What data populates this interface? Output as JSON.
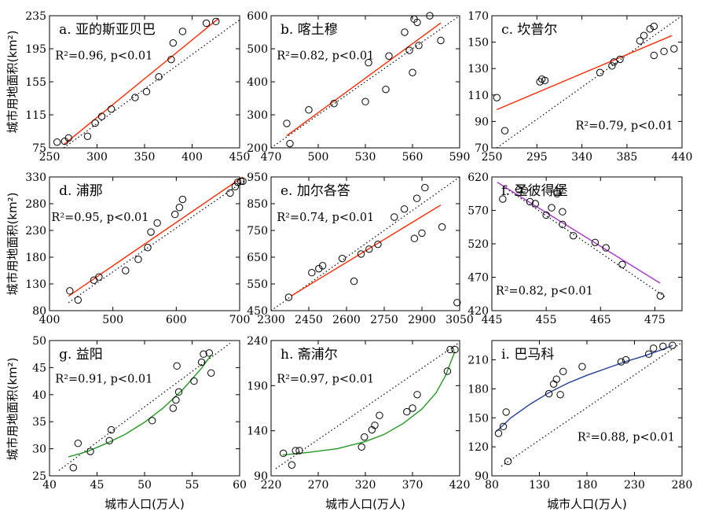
{
  "figure": {
    "ylabel": "城市用地面积(km²)",
    "xlabel": "城市人口(万人)"
  },
  "chart_data": [
    {
      "type": "scatter",
      "title": "a. 亚的斯亚贝巴",
      "stat": "R²=0.96, p<0.01",
      "xlim": [
        250,
        450
      ],
      "ylim": [
        75,
        235
      ],
      "xticks": [
        "250",
        "300",
        "350",
        "400",
        "450"
      ],
      "xtick_values": [
        250,
        300,
        350,
        400,
        450
      ],
      "yticks": [
        "75",
        "115",
        "155",
        "195",
        "235"
      ],
      "ytick_values": [
        75,
        115,
        155,
        195,
        235
      ],
      "fit_color": "#ff2a00",
      "fit_type": "linear",
      "fit_x": [
        265,
        428
      ],
      "fit_y": [
        79,
        232
      ],
      "diag_x": [
        265,
        450
      ],
      "diag_y": [
        75,
        230
      ],
      "points": [
        [
          258,
          82
        ],
        [
          266,
          83
        ],
        [
          270,
          87
        ],
        [
          290,
          89
        ],
        [
          298,
          105
        ],
        [
          305,
          113
        ],
        [
          315,
          122
        ],
        [
          340,
          136
        ],
        [
          352,
          143
        ],
        [
          365,
          161
        ],
        [
          378,
          182
        ],
        [
          380,
          202
        ],
        [
          390,
          216
        ],
        [
          415,
          226
        ],
        [
          425,
          228
        ]
      ]
    },
    {
      "type": "scatter",
      "title": "b. 喀土穆",
      "stat": "R²=0.82, p<0.01",
      "xlim": [
        470,
        590
      ],
      "ylim": [
        200,
        600
      ],
      "xticks": [
        "470",
        "500",
        "530",
        "560",
        "590"
      ],
      "xtick_values": [
        470,
        500,
        530,
        560,
        590
      ],
      "yticks": [
        "200",
        "300",
        "400",
        "500",
        "600"
      ],
      "ytick_values": [
        200,
        300,
        400,
        500,
        600
      ],
      "fit_color": "#ff2a00",
      "fit_type": "linear",
      "fit_x": [
        480,
        578
      ],
      "fit_y": [
        237,
        578
      ],
      "diag_x": [
        470,
        590
      ],
      "diag_y": [
        200,
        600
      ],
      "points": [
        [
          480,
          274
        ],
        [
          482,
          213
        ],
        [
          494,
          315
        ],
        [
          510,
          334
        ],
        [
          530,
          340
        ],
        [
          532,
          458
        ],
        [
          543,
          377
        ],
        [
          545,
          478
        ],
        [
          555,
          550
        ],
        [
          558,
          495
        ],
        [
          560,
          428
        ],
        [
          561,
          590
        ],
        [
          563,
          580
        ],
        [
          564,
          510
        ],
        [
          571,
          600
        ],
        [
          578,
          525
        ]
      ]
    },
    {
      "type": "scatter",
      "title": "c. 坎普尔",
      "stat": "R²=0.79, p<0.01",
      "xlim": [
        250,
        440
      ],
      "ylim": [
        70,
        170
      ],
      "xticks": [
        "250",
        "295",
        "340",
        "385",
        "440"
      ],
      "xtick_values": [
        250,
        295,
        340,
        385,
        440
      ],
      "yticks": [
        "70",
        "90",
        "110",
        "130",
        "150",
        "170"
      ],
      "ytick_values": [
        70,
        90,
        110,
        130,
        150,
        170
      ],
      "fit_color": "#ff2a00",
      "fit_type": "linear",
      "fit_x": [
        255,
        430
      ],
      "fit_y": [
        99,
        155
      ],
      "diag_x": [
        255,
        440
      ],
      "diag_y": [
        70,
        170
      ],
      "points": [
        [
          255,
          108
        ],
        [
          263,
          83
        ],
        [
          298,
          120
        ],
        [
          300,
          122
        ],
        [
          303,
          121
        ],
        [
          358,
          127
        ],
        [
          370,
          132
        ],
        [
          372,
          135
        ],
        [
          378,
          137
        ],
        [
          398,
          151
        ],
        [
          402,
          155
        ],
        [
          408,
          160
        ],
        [
          412,
          162
        ],
        [
          412,
          140
        ],
        [
          422,
          143
        ],
        [
          432,
          145
        ]
      ]
    },
    {
      "type": "scatter",
      "title": "d. 浦那",
      "stat": "R²=0.95, p<0.01",
      "xlim": [
        400,
        700
      ],
      "ylim": [
        80,
        330
      ],
      "xticks": [
        "400",
        "500",
        "600",
        "700"
      ],
      "xtick_values": [
        400,
        500,
        600,
        700
      ],
      "yticks": [
        "80",
        "130",
        "180",
        "230",
        "280",
        "330"
      ],
      "ytick_values": [
        80,
        130,
        180,
        230,
        280,
        330
      ],
      "fit_color": "#ff2a00",
      "fit_type": "linear",
      "fit_x": [
        430,
        705
      ],
      "fit_y": [
        107,
        330
      ],
      "diag_x": [
        430,
        710
      ],
      "diag_y": [
        95,
        325
      ],
      "points": [
        [
          432,
          117
        ],
        [
          445,
          100
        ],
        [
          470,
          137
        ],
        [
          478,
          143
        ],
        [
          520,
          155
        ],
        [
          540,
          176
        ],
        [
          555,
          198
        ],
        [
          560,
          227
        ],
        [
          570,
          244
        ],
        [
          598,
          260
        ],
        [
          605,
          273
        ],
        [
          610,
          288
        ],
        [
          685,
          300
        ],
        [
          693,
          312
        ],
        [
          697,
          320
        ],
        [
          702,
          322
        ],
        [
          705,
          322
        ]
      ]
    },
    {
      "type": "scatter",
      "title": "e. 加尔各答",
      "stat": "R²=0.74, p<0.01",
      "xlim": [
        2300,
        3050
      ],
      "ylim": [
        450,
        950
      ],
      "xticks": [
        "2300",
        "2450",
        "2600",
        "2750",
        "2900",
        "3050"
      ],
      "xtick_values": [
        2300,
        2450,
        2600,
        2750,
        2900,
        3050
      ],
      "yticks": [
        "450",
        "550",
        "650",
        "750",
        "850",
        "950"
      ],
      "ytick_values": [
        450,
        550,
        650,
        750,
        850,
        950
      ],
      "fit_color": "#ff2a00",
      "fit_type": "linear",
      "fit_x": [
        2380,
        2975
      ],
      "fit_y": [
        505,
        845
      ],
      "diag_x": [
        2300,
        3050
      ],
      "diag_y": [
        450,
        950
      ],
      "points": [
        [
          2370,
          500
        ],
        [
          2462,
          592
        ],
        [
          2490,
          607
        ],
        [
          2505,
          618
        ],
        [
          2583,
          645
        ],
        [
          2630,
          560
        ],
        [
          2658,
          662
        ],
        [
          2690,
          680
        ],
        [
          2725,
          698
        ],
        [
          2790,
          800
        ],
        [
          2830,
          830
        ],
        [
          2870,
          720
        ],
        [
          2880,
          870
        ],
        [
          2912,
          910
        ],
        [
          2900,
          740
        ],
        [
          2980,
          763
        ],
        [
          3040,
          480
        ]
      ]
    },
    {
      "type": "scatter",
      "title": "f. 圣彼得堡",
      "stat": "R²=0.82, p<0.01",
      "xlim": [
        445,
        480
      ],
      "ylim": [
        420,
        620
      ],
      "xticks": [
        "445",
        "455",
        "465",
        "475"
      ],
      "xtick_values": [
        445,
        455,
        465,
        475
      ],
      "yticks": [
        "420",
        "470",
        "520",
        "570",
        "620"
      ],
      "ytick_values": [
        420,
        470,
        520,
        570,
        620
      ],
      "fit_color": "#aa33cc",
      "fit_type": "linear",
      "fit_x": [
        446,
        476
      ],
      "fit_y": [
        612,
        461
      ],
      "diag_x": [
        446,
        477
      ],
      "diag_y": [
        612,
        440
      ],
      "points": [
        [
          447,
          587
        ],
        [
          450,
          601
        ],
        [
          451,
          600
        ],
        [
          452,
          583
        ],
        [
          453,
          580
        ],
        [
          455,
          563
        ],
        [
          456,
          574
        ],
        [
          457,
          595
        ],
        [
          457,
          598
        ],
        [
          458,
          568
        ],
        [
          458,
          549
        ],
        [
          460,
          532
        ],
        [
          464,
          522
        ],
        [
          466,
          514
        ],
        [
          469,
          489
        ],
        [
          476,
          442
        ]
      ]
    },
    {
      "type": "scatter",
      "title": "g. 益阳",
      "stat": "R²=0.91, p<0.01",
      "xlim": [
        40,
        60
      ],
      "ylim": [
        25,
        50
      ],
      "xticks": [
        "40",
        "45",
        "50",
        "55",
        "60"
      ],
      "xtick_values": [
        40,
        45,
        50,
        55,
        60
      ],
      "yticks": [
        "25",
        "30",
        "35",
        "40",
        "45",
        "50"
      ],
      "ytick_values": [
        25,
        30,
        35,
        40,
        45,
        50
      ],
      "fit_color": "#229922",
      "fit_type": "curve",
      "fit_x": [
        42,
        44,
        46,
        48,
        50,
        52,
        54,
        56,
        57
      ],
      "fit_y": [
        28.5,
        29.5,
        31.0,
        32.7,
        34.9,
        37.6,
        40.9,
        44.9,
        47.3
      ],
      "diag_x": [
        41,
        59
      ],
      "diag_y": [
        26,
        49.5
      ],
      "points": [
        [
          42.5,
          26.5
        ],
        [
          43,
          31
        ],
        [
          44.3,
          29.5
        ],
        [
          46.3,
          31.5
        ],
        [
          46.5,
          33.5
        ],
        [
          50.8,
          35.2
        ],
        [
          53,
          37.5
        ],
        [
          53.3,
          39
        ],
        [
          53.4,
          45.3
        ],
        [
          53.6,
          40.5
        ],
        [
          55.2,
          42.5
        ],
        [
          56,
          46
        ],
        [
          56.2,
          47.5
        ],
        [
          56.8,
          47.7
        ],
        [
          57,
          44
        ]
      ]
    },
    {
      "type": "scatter",
      "title": "h. 斋浦尔",
      "stat": "R²=0.97, p<0.01",
      "xlim": [
        220,
        420
      ],
      "ylim": [
        90,
        240
      ],
      "xticks": [
        "220",
        "270",
        "320",
        "370",
        "420"
      ],
      "xtick_values": [
        220,
        270,
        320,
        370,
        420
      ],
      "yticks": [
        "90",
        "140",
        "190",
        "240"
      ],
      "ytick_values": [
        90,
        140,
        190,
        240
      ],
      "fit_color": "#229922",
      "fit_type": "curve",
      "fit_x": [
        232,
        260,
        290,
        320,
        340,
        360,
        380,
        395,
        405,
        415
      ],
      "fit_y": [
        113,
        116,
        120,
        128,
        136,
        148,
        164,
        182,
        201,
        228
      ],
      "diag_x": [
        225,
        420
      ],
      "diag_y": [
        98,
        238
      ],
      "points": [
        [
          233,
          115
        ],
        [
          242,
          102
        ],
        [
          246,
          118
        ],
        [
          250,
          118
        ],
        [
          316,
          122
        ],
        [
          319,
          133
        ],
        [
          327,
          141
        ],
        [
          330,
          146
        ],
        [
          335,
          157
        ],
        [
          364,
          161
        ],
        [
          370,
          165
        ],
        [
          375,
          180
        ],
        [
          407,
          206
        ],
        [
          410,
          230
        ],
        [
          415,
          230
        ]
      ]
    },
    {
      "type": "scatter",
      "title": "i. 巴马科",
      "stat": "R²=0.88, p<0.01",
      "xlim": [
        80,
        280
      ],
      "ylim": [
        90,
        230
      ],
      "xticks": [
        "80",
        "130",
        "180",
        "230",
        "280"
      ],
      "xtick_values": [
        80,
        130,
        180,
        230,
        280
      ],
      "yticks": [
        "90",
        "120",
        "150",
        "180",
        "210"
      ],
      "ytick_values": [
        90,
        120,
        150,
        180,
        210
      ],
      "fit_color": "#1f3f99",
      "fit_type": "curve",
      "fit_x": [
        85,
        100,
        120,
        140,
        160,
        180,
        200,
        220,
        240,
        260,
        270
      ],
      "fit_y": [
        136,
        150,
        164,
        176,
        186,
        194,
        201,
        208,
        214,
        221,
        225
      ],
      "diag_x": [
        90,
        280
      ],
      "diag_y": [
        100,
        228
      ],
      "points": [
        [
          87,
          134
        ],
        [
          92,
          141
        ],
        [
          95,
          156
        ],
        [
          97,
          105
        ],
        [
          140,
          175
        ],
        [
          145,
          185
        ],
        [
          148,
          190
        ],
        [
          152,
          174
        ],
        [
          155,
          198
        ],
        [
          175,
          203
        ],
        [
          216,
          208
        ],
        [
          221,
          210
        ],
        [
          245,
          216
        ],
        [
          250,
          222
        ],
        [
          260,
          224
        ],
        [
          270,
          225
        ]
      ]
    }
  ]
}
